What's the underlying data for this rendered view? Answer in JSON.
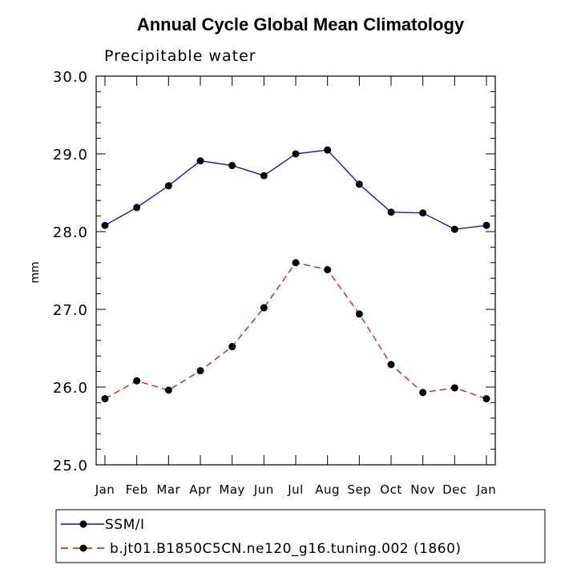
{
  "chart_data": {
    "type": "line",
    "title": "Annual Cycle Global Mean Climatology",
    "subtitle": "Precipitable water",
    "xlabel": "",
    "ylabel": "mm",
    "categories": [
      "Jan",
      "Feb",
      "Mar",
      "Apr",
      "May",
      "Jun",
      "Jul",
      "Aug",
      "Sep",
      "Oct",
      "Nov",
      "Dec",
      "Jan"
    ],
    "ylim": [
      25.0,
      30.0
    ],
    "yticks": [
      "25.0",
      "26.0",
      "27.0",
      "28.0",
      "29.0",
      "30.0"
    ],
    "yticks_values": [
      25.0,
      26.0,
      27.0,
      28.0,
      29.0,
      30.0
    ],
    "grid": false,
    "legend_position": "bottom",
    "series": [
      {
        "name": "SSM/I",
        "color": "#0000ff",
        "dash": "solid",
        "values": [
          28.08,
          28.31,
          28.59,
          28.91,
          28.85,
          28.72,
          29.0,
          29.05,
          28.61,
          28.25,
          28.24,
          28.03,
          28.08
        ]
      },
      {
        "name": "b.jt01.B1850C5CN.ne120_g16.tuning.002 (1860)",
        "color": "#ff0000",
        "dash": "dashed",
        "values": [
          25.85,
          26.08,
          25.96,
          26.21,
          26.52,
          27.02,
          27.6,
          27.51,
          26.94,
          26.29,
          25.93,
          25.99,
          25.85
        ]
      }
    ]
  }
}
